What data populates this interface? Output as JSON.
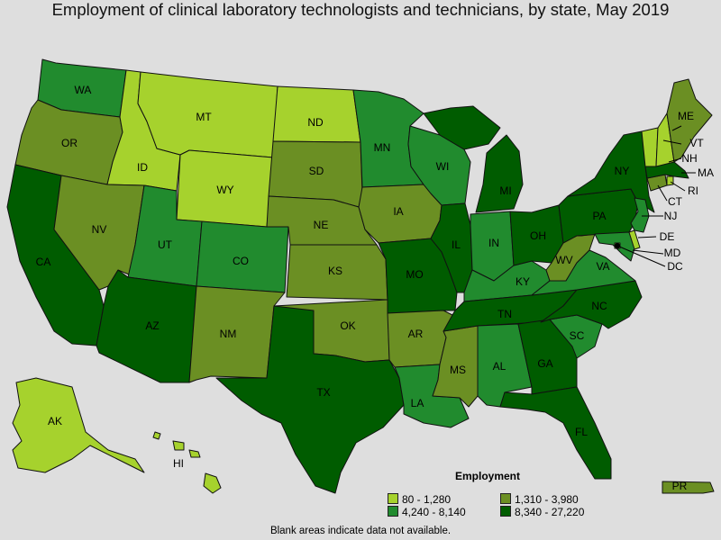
{
  "title": "Employment of clinical laboratory technologists and technicians, by state, May 2019",
  "legend": {
    "title": "Employment",
    "items": [
      {
        "range": "80 - 1,280",
        "color": "#a6d22d"
      },
      {
        "range": "1,310 - 3,980",
        "color": "#6b8f23"
      },
      {
        "range": "4,240 - 8,140",
        "color": "#218b2e"
      },
      {
        "range": "8,340 - 27,220",
        "color": "#005c00"
      }
    ]
  },
  "note": "Blank areas indicate data not available.",
  "states": {
    "WA": "4,240 - 8,140",
    "OR": "1,310 - 3,980",
    "CA": "8,340 - 27,220",
    "ID": "80 - 1,280",
    "NV": "1,310 - 3,980",
    "MT": "80 - 1,280",
    "WY": "80 - 1,280",
    "UT": "4,240 - 8,140",
    "AZ": "8,340 - 27,220",
    "CO": "4,240 - 8,140",
    "NM": "1,310 - 3,980",
    "ND": "80 - 1,280",
    "SD": "1,310 - 3,980",
    "NE": "1,310 - 3,980",
    "KS": "1,310 - 3,980",
    "OK": "1,310 - 3,980",
    "TX": "8,340 - 27,220",
    "MN": "4,240 - 8,140",
    "IA": "1,310 - 3,980",
    "MO": "8,340 - 27,220",
    "AR": "1,310 - 3,980",
    "LA": "4,240 - 8,140",
    "WI": "4,240 - 8,140",
    "IL": "8,340 - 27,220",
    "MS": "1,310 - 3,980",
    "MI": "8,340 - 27,220",
    "IN": "4,240 - 8,140",
    "KY": "4,240 - 8,140",
    "TN": "8,340 - 27,220",
    "AL": "4,240 - 8,140",
    "OH": "8,340 - 27,220",
    "WV": "1,310 - 3,980",
    "GA": "8,340 - 27,220",
    "FL": "8,340 - 27,220",
    "SC": "4,240 - 8,140",
    "NC": "8,340 - 27,220",
    "VA": "4,240 - 8,140",
    "PA": "8,340 - 27,220",
    "NY": "8,340 - 27,220",
    "NJ": "4,240 - 8,140",
    "DE": "80 - 1,280",
    "MD": "4,240 - 8,140",
    "DC": "80 - 1,280",
    "CT": "1,310 - 3,980",
    "RI": "80 - 1,280",
    "MA": "8,340 - 27,220",
    "VT": "80 - 1,280",
    "NH": "80 - 1,280",
    "ME": "1,310 - 3,980",
    "AK": "80 - 1,280",
    "HI": "80 - 1,280",
    "PR": "1,310 - 3,980"
  }
}
